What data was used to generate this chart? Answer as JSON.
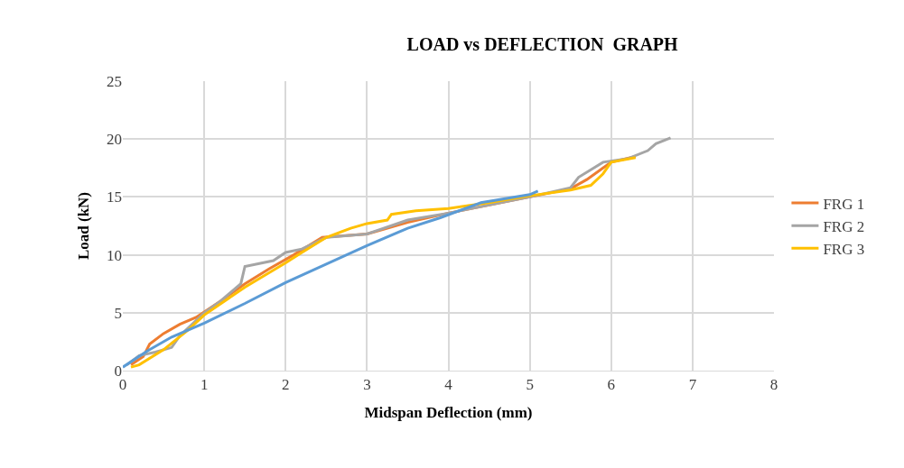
{
  "chart_data": {
    "type": "line",
    "title": "LOAD vs DEFLECTION  GRAPH",
    "xlabel": "Midspan Deflection (mm)",
    "ylabel": "Load (kN)",
    "xlim": [
      0,
      8
    ],
    "xticks": [
      0,
      1,
      2,
      3,
      4,
      5,
      6,
      7,
      8
    ],
    "ylim": [
      0,
      25
    ],
    "yticks": [
      0,
      5,
      10,
      15,
      20,
      25
    ],
    "grid": true,
    "legend": "right",
    "marker": "none",
    "line_style": "solid",
    "series": [
      {
        "name": "FRG 1",
        "color": "#ed7d31",
        "x": [
          0.1,
          0.25,
          0.33,
          0.5,
          0.7,
          0.9,
          1.2,
          1.5,
          1.8,
          2.1,
          2.45,
          3,
          3.5,
          4,
          4.5,
          5,
          5.5,
          5.7,
          5.9,
          6.0,
          6.3
        ],
        "values": [
          0.5,
          1.2,
          2.3,
          3.2,
          4,
          4.6,
          6,
          7.5,
          8.8,
          10,
          11.5,
          11.8,
          12.8,
          13.6,
          14.3,
          15,
          15.7,
          16.5,
          17.5,
          18,
          18.5
        ]
      },
      {
        "name": "FRG 2",
        "color": "#a5a5a5",
        "x": [
          0.05,
          0.2,
          0.4,
          0.6,
          0.7,
          1,
          1.2,
          1.45,
          1.5,
          1.85,
          2,
          2.2,
          2.5,
          3,
          3.5,
          4,
          4.5,
          5,
          5.5,
          5.6,
          5.9,
          6.2,
          6.45,
          6.55,
          6.73
        ],
        "values": [
          0.5,
          1.3,
          1.6,
          2,
          3,
          5,
          6,
          7.5,
          9,
          9.5,
          10.2,
          10.5,
          11.5,
          11.8,
          13,
          13.6,
          14.3,
          15,
          15.8,
          16.7,
          18,
          18.3,
          19,
          19.6,
          20.1
        ]
      },
      {
        "name": "FRG 3",
        "color": "#ffc000",
        "x": [
          0.1,
          0.2,
          0.5,
          0.8,
          1,
          1.5,
          2,
          2.2,
          2.5,
          2.8,
          3,
          3.25,
          3.3,
          3.6,
          4,
          4.5,
          5,
          5.5,
          5.75,
          5.9,
          6.0,
          6.3
        ],
        "values": [
          0.3,
          0.5,
          1.8,
          3.5,
          4.8,
          7.2,
          9.3,
          10.2,
          11.5,
          12.3,
          12.7,
          13,
          13.5,
          13.8,
          14,
          14.5,
          15.1,
          15.6,
          16,
          17,
          18,
          18.4
        ]
      },
      {
        "color": "#5b9bd5",
        "x": [
          0,
          0.3,
          0.6,
          1,
          1.5,
          2,
          2.5,
          3,
          3.5,
          3.9,
          4.4,
          5,
          5.1
        ],
        "values": [
          0.3,
          1.7,
          2.9,
          4.1,
          5.8,
          7.6,
          9.2,
          10.8,
          12.3,
          13.2,
          14.5,
          15.2,
          15.5
        ]
      }
    ]
  }
}
